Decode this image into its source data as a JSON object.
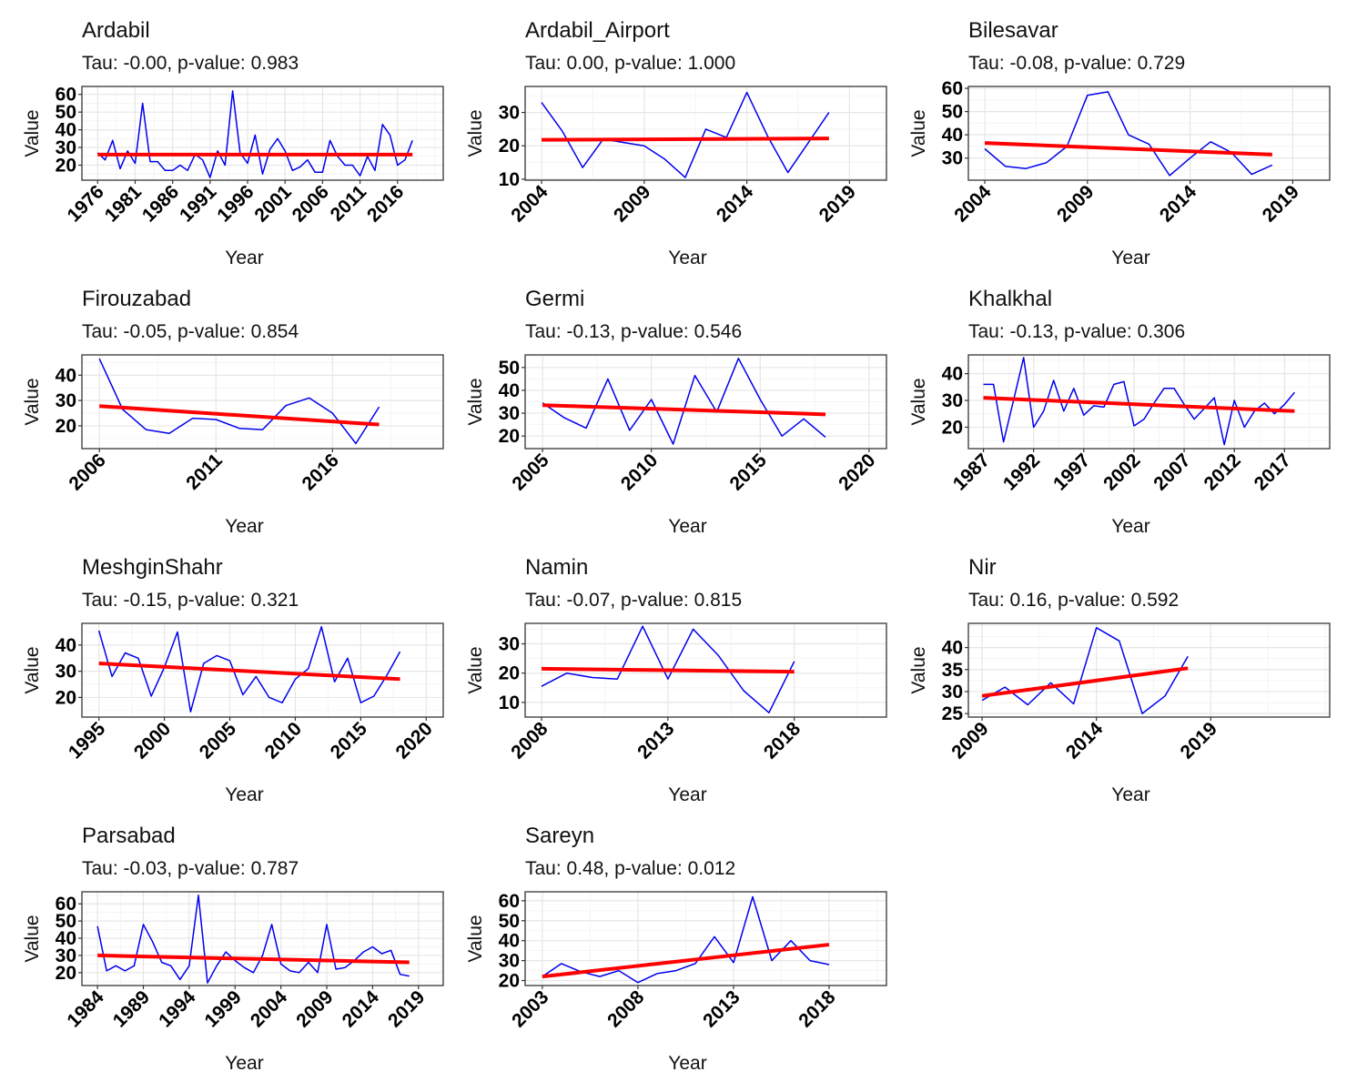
{
  "figure": {
    "layout": "4 rows x 3 columns facet grid",
    "colors": {
      "series_line": "#0000ee",
      "trend_line": "#ff0000",
      "panel_border": "#444444",
      "grid_major": "#e6e6e6",
      "grid_minor": "#f2f2f2",
      "background": "#ffffff"
    }
  },
  "chart_data": [
    {
      "type": "line",
      "title": "Ardabil",
      "subtitle": "Tau: -0.00, p-value: 0.983",
      "xlabel": "Year",
      "ylabel": "Value",
      "xlim": [
        1973.9,
        2022.1
      ],
      "ylim": [
        11.5,
        64.5
      ],
      "xticks": [
        1976,
        1981,
        1986,
        1991,
        1996,
        2001,
        2006,
        2011,
        2016
      ],
      "yticks": [
        20,
        30,
        40,
        50,
        60
      ],
      "grid": true,
      "x": [
        1976,
        1977,
        1978,
        1979,
        1980,
        1981,
        1982,
        1983,
        1984,
        1985,
        1986,
        1987,
        1988,
        1989,
        1990,
        1991,
        1992,
        1993,
        1994,
        1995,
        1996,
        1997,
        1998,
        1999,
        2000,
        2001,
        2002,
        2003,
        2004,
        2005,
        2006,
        2007,
        2008,
        2009,
        2010,
        2011,
        2012,
        2013,
        2014,
        2015,
        2016,
        2017,
        2018
      ],
      "series": [
        {
          "name": "Value",
          "values": [
            27,
            23,
            34,
            18,
            28,
            21,
            55,
            22,
            22,
            17,
            17,
            20,
            17,
            26,
            23,
            13,
            28,
            20,
            62,
            27,
            21,
            37,
            15,
            29,
            35,
            28,
            17,
            19,
            23,
            16,
            16,
            34,
            25,
            20,
            20,
            14,
            25,
            17,
            43,
            37,
            20,
            23,
            34
          ]
        },
        {
          "name": "Trend",
          "values_start_end": [
            26.0,
            26.0
          ]
        }
      ]
    },
    {
      "type": "line",
      "title": "Ardabil_Airport",
      "subtitle": "Tau: 0.00, p-value: 1.000",
      "xlabel": "Year",
      "ylabel": "Value",
      "xlim": [
        2003.2,
        2020.8
      ],
      "ylim": [
        9.7,
        37.8
      ],
      "xticks": [
        2004,
        2009,
        2014,
        2019
      ],
      "yticks": [
        10,
        20,
        30
      ],
      "grid": true,
      "x": [
        2004,
        2005,
        2006,
        2007,
        2008,
        2009,
        2010,
        2011,
        2012,
        2013,
        2014,
        2015,
        2016,
        2017,
        2018
      ],
      "series": [
        {
          "name": "Value",
          "values": [
            33,
            24.5,
            13.5,
            22,
            21,
            20,
            16,
            10.5,
            25,
            22.5,
            36,
            23,
            12,
            21,
            30
          ]
        },
        {
          "name": "Trend",
          "values_start_end": [
            21.8,
            22.2
          ]
        }
      ]
    },
    {
      "type": "line",
      "title": "Bilesavar",
      "subtitle": "Tau: -0.08, p-value: 0.729",
      "xlabel": "Year",
      "ylabel": "Value",
      "xlim": [
        2003.2,
        2020.8
      ],
      "ylim": [
        20.5,
        60.8
      ],
      "xticks": [
        2004,
        2009,
        2014,
        2019
      ],
      "yticks": [
        30,
        40,
        50,
        60
      ],
      "grid": true,
      "x": [
        2004,
        2005,
        2006,
        2007,
        2008,
        2009,
        2010,
        2011,
        2012,
        2013,
        2014,
        2015,
        2016,
        2017,
        2018
      ],
      "series": [
        {
          "name": "Value",
          "values": [
            34,
            26.5,
            25.5,
            28,
            35,
            57,
            58.5,
            40,
            36,
            22.5,
            30,
            37,
            32.5,
            23,
            27
          ]
        },
        {
          "name": "Trend",
          "values_start_end": [
            36.5,
            31.5
          ]
        }
      ]
    },
    {
      "type": "line",
      "title": "Firouzabad",
      "subtitle": "Tau: -0.05, p-value: 0.854",
      "xlabel": "Year",
      "ylabel": "Value",
      "xlim": [
        2005.25,
        2020.75
      ],
      "ylim": [
        11.0,
        48.0
      ],
      "xticks": [
        2006,
        2011,
        2016
      ],
      "yticks": [
        20,
        30,
        40
      ],
      "grid": true,
      "x": [
        2006,
        2007,
        2008,
        2009,
        2010,
        2011,
        2012,
        2013,
        2014,
        2015,
        2016,
        2017,
        2018
      ],
      "series": [
        {
          "name": "Value",
          "values": [
            46.5,
            26.5,
            18.5,
            17,
            23,
            22.5,
            19,
            18.5,
            28,
            31,
            25,
            13,
            27.5
          ]
        },
        {
          "name": "Trend",
          "values_start_end": [
            27.8,
            20.5
          ]
        }
      ]
    },
    {
      "type": "line",
      "title": "Germi",
      "subtitle": "Tau: -0.13, p-value: 0.546",
      "xlabel": "Year",
      "ylabel": "Value",
      "xlim": [
        2004.2,
        2020.8
      ],
      "ylim": [
        14.5,
        55.5
      ],
      "xticks": [
        2005,
        2010,
        2015,
        2020
      ],
      "yticks": [
        20,
        30,
        40,
        50
      ],
      "grid": true,
      "x": [
        2005,
        2006,
        2007,
        2008,
        2009,
        2010,
        2011,
        2012,
        2013,
        2014,
        2015,
        2016,
        2017,
        2018
      ],
      "series": [
        {
          "name": "Value",
          "values": [
            34.5,
            28,
            23.5,
            45,
            22.5,
            36,
            16.5,
            46.5,
            30.5,
            54,
            36,
            20,
            27.5,
            19.5
          ]
        },
        {
          "name": "Trend",
          "values_start_end": [
            33.5,
            29.5
          ]
        }
      ]
    },
    {
      "type": "line",
      "title": "Khalkhal",
      "subtitle": "Tau: -0.13, p-value: 0.306",
      "xlabel": "Year",
      "ylabel": "Value",
      "xlim": [
        1985.5,
        2021.5
      ],
      "ylim": [
        12.0,
        47.0
      ],
      "xticks": [
        1987,
        1992,
        1997,
        2002,
        2007,
        2012,
        2017
      ],
      "yticks": [
        20,
        30,
        40
      ],
      "grid": true,
      "x": [
        1987,
        1988,
        1989,
        1990,
        1991,
        1992,
        1993,
        1994,
        1995,
        1996,
        1997,
        1998,
        1999,
        2000,
        2001,
        2002,
        2003,
        2004,
        2005,
        2006,
        2007,
        2008,
        2009,
        2010,
        2011,
        2012,
        2013,
        2014,
        2015,
        2016,
        2017,
        2018
      ],
      "series": [
        {
          "name": "Value",
          "values": [
            36,
            36,
            14.5,
            30,
            46,
            20,
            26,
            37.5,
            26,
            34.5,
            24.5,
            28,
            27.5,
            36,
            37,
            20.5,
            23,
            29,
            34.5,
            34.5,
            28.5,
            23,
            27,
            31,
            13.5,
            30,
            20,
            26,
            29,
            25,
            28.5,
            33
          ]
        },
        {
          "name": "Trend",
          "values_start_end": [
            31.0,
            26.0
          ]
        }
      ]
    },
    {
      "type": "line",
      "title": "MeshginShahr",
      "subtitle": "Tau: -0.15, p-value: 0.321",
      "xlabel": "Year",
      "ylabel": "Value",
      "xlim": [
        1993.7,
        2021.3
      ],
      "ylim": [
        12.5,
        48.3
      ],
      "xticks": [
        1995,
        2000,
        2005,
        2010,
        2015,
        2020
      ],
      "yticks": [
        20,
        30,
        40
      ],
      "grid": true,
      "x": [
        1995,
        1996,
        1997,
        1998,
        1999,
        2000,
        2001,
        2002,
        2003,
        2004,
        2005,
        2006,
        2007,
        2008,
        2009,
        2010,
        2011,
        2012,
        2013,
        2014,
        2015,
        2016,
        2017,
        2018
      ],
      "series": [
        {
          "name": "Value",
          "values": [
            45.5,
            28,
            37,
            35,
            20.5,
            31.5,
            45,
            14.5,
            33,
            36,
            34,
            21,
            28,
            20,
            18,
            27,
            31,
            47,
            26,
            35,
            18,
            20.5,
            28.5,
            37.5
          ]
        },
        {
          "name": "Trend",
          "values_start_end": [
            33.0,
            27.0
          ]
        }
      ]
    },
    {
      "type": "line",
      "title": "Namin",
      "subtitle": "Tau: -0.07, p-value: 0.815",
      "xlabel": "Year",
      "ylabel": "Value",
      "xlim": [
        2007.35,
        2021.65
      ],
      "ylim": [
        5.0,
        37.0
      ],
      "xticks": [
        2008,
        2013,
        2018
      ],
      "yticks": [
        10,
        20,
        30
      ],
      "grid": true,
      "x": [
        2008,
        2009,
        2010,
        2011,
        2012,
        2013,
        2014,
        2015,
        2016,
        2017,
        2018
      ],
      "series": [
        {
          "name": "Value",
          "values": [
            15.5,
            20,
            18.5,
            18,
            36,
            18,
            35,
            26,
            14,
            6.5,
            24
          ]
        },
        {
          "name": "Trend",
          "values_start_end": [
            21.5,
            20.5
          ]
        }
      ]
    },
    {
      "type": "line",
      "title": "Nir",
      "subtitle": "Tau: 0.16, p-value: 0.592",
      "xlabel": "Year",
      "ylabel": "Value",
      "xlim": [
        2008.4,
        2024.2
      ],
      "ylim": [
        24.2,
        45.5
      ],
      "xticks": [
        2009,
        2014,
        2019
      ],
      "yticks": [
        25,
        30,
        35,
        40
      ],
      "grid": true,
      "x": [
        2009,
        2010,
        2011,
        2012,
        2013,
        2014,
        2015,
        2016,
        2017,
        2018
      ],
      "series": [
        {
          "name": "Value",
          "values": [
            28,
            31,
            27,
            32,
            27.2,
            44.5,
            41.5,
            25,
            29,
            38
          ]
        },
        {
          "name": "Trend",
          "values_start_end": [
            29.0,
            35.3
          ]
        }
      ]
    },
    {
      "type": "line",
      "title": "Parsabad",
      "subtitle": "Tau: -0.03, p-value: 0.787",
      "xlabel": "Year",
      "ylabel": "Value",
      "xlim": [
        1982.3,
        2021.7
      ],
      "ylim": [
        12.5,
        67.0
      ],
      "xticks": [
        1984,
        1989,
        1994,
        1999,
        2004,
        2009,
        2014,
        2019
      ],
      "yticks": [
        20,
        30,
        40,
        50,
        60
      ],
      "grid": true,
      "x": [
        1984,
        1985,
        1986,
        1987,
        1988,
        1989,
        1990,
        1991,
        1992,
        1993,
        1994,
        1995,
        1996,
        1997,
        1998,
        1999,
        2000,
        2001,
        2002,
        2003,
        2004,
        2005,
        2006,
        2007,
        2008,
        2009,
        2010,
        2011,
        2012,
        2013,
        2014,
        2015,
        2016,
        2017,
        2018
      ],
      "series": [
        {
          "name": "Value",
          "values": [
            47,
            21,
            24,
            21,
            24,
            48,
            38,
            26,
            24,
            16,
            24,
            65,
            14,
            24,
            32,
            27,
            23,
            20,
            30,
            48,
            25,
            21,
            20,
            26,
            20,
            48,
            22,
            23,
            27,
            32,
            35,
            31,
            33,
            19,
            18
          ]
        },
        {
          "name": "Trend",
          "values_start_end": [
            30.0,
            26.0
          ]
        }
      ]
    },
    {
      "type": "line",
      "title": "Sareyn",
      "subtitle": "Tau: 0.48, p-value: 0.012",
      "xlabel": "Year",
      "ylabel": "Value",
      "xlim": [
        2002.1,
        2021.0
      ],
      "ylim": [
        17.5,
        64.5
      ],
      "xticks": [
        2003,
        2008,
        2013,
        2018
      ],
      "yticks": [
        20,
        30,
        40,
        50,
        60
      ],
      "grid": true,
      "x": [
        2003,
        2004,
        2005,
        2006,
        2007,
        2008,
        2009,
        2010,
        2011,
        2012,
        2013,
        2014,
        2015,
        2016,
        2017,
        2018
      ],
      "series": [
        {
          "name": "Value",
          "values": [
            22,
            28.5,
            24.5,
            22,
            25,
            19,
            23.5,
            25,
            28.5,
            42,
            29,
            62,
            30,
            40,
            30,
            28
          ]
        },
        {
          "name": "Trend",
          "values_start_end": [
            22.0,
            38.0
          ]
        }
      ]
    }
  ]
}
